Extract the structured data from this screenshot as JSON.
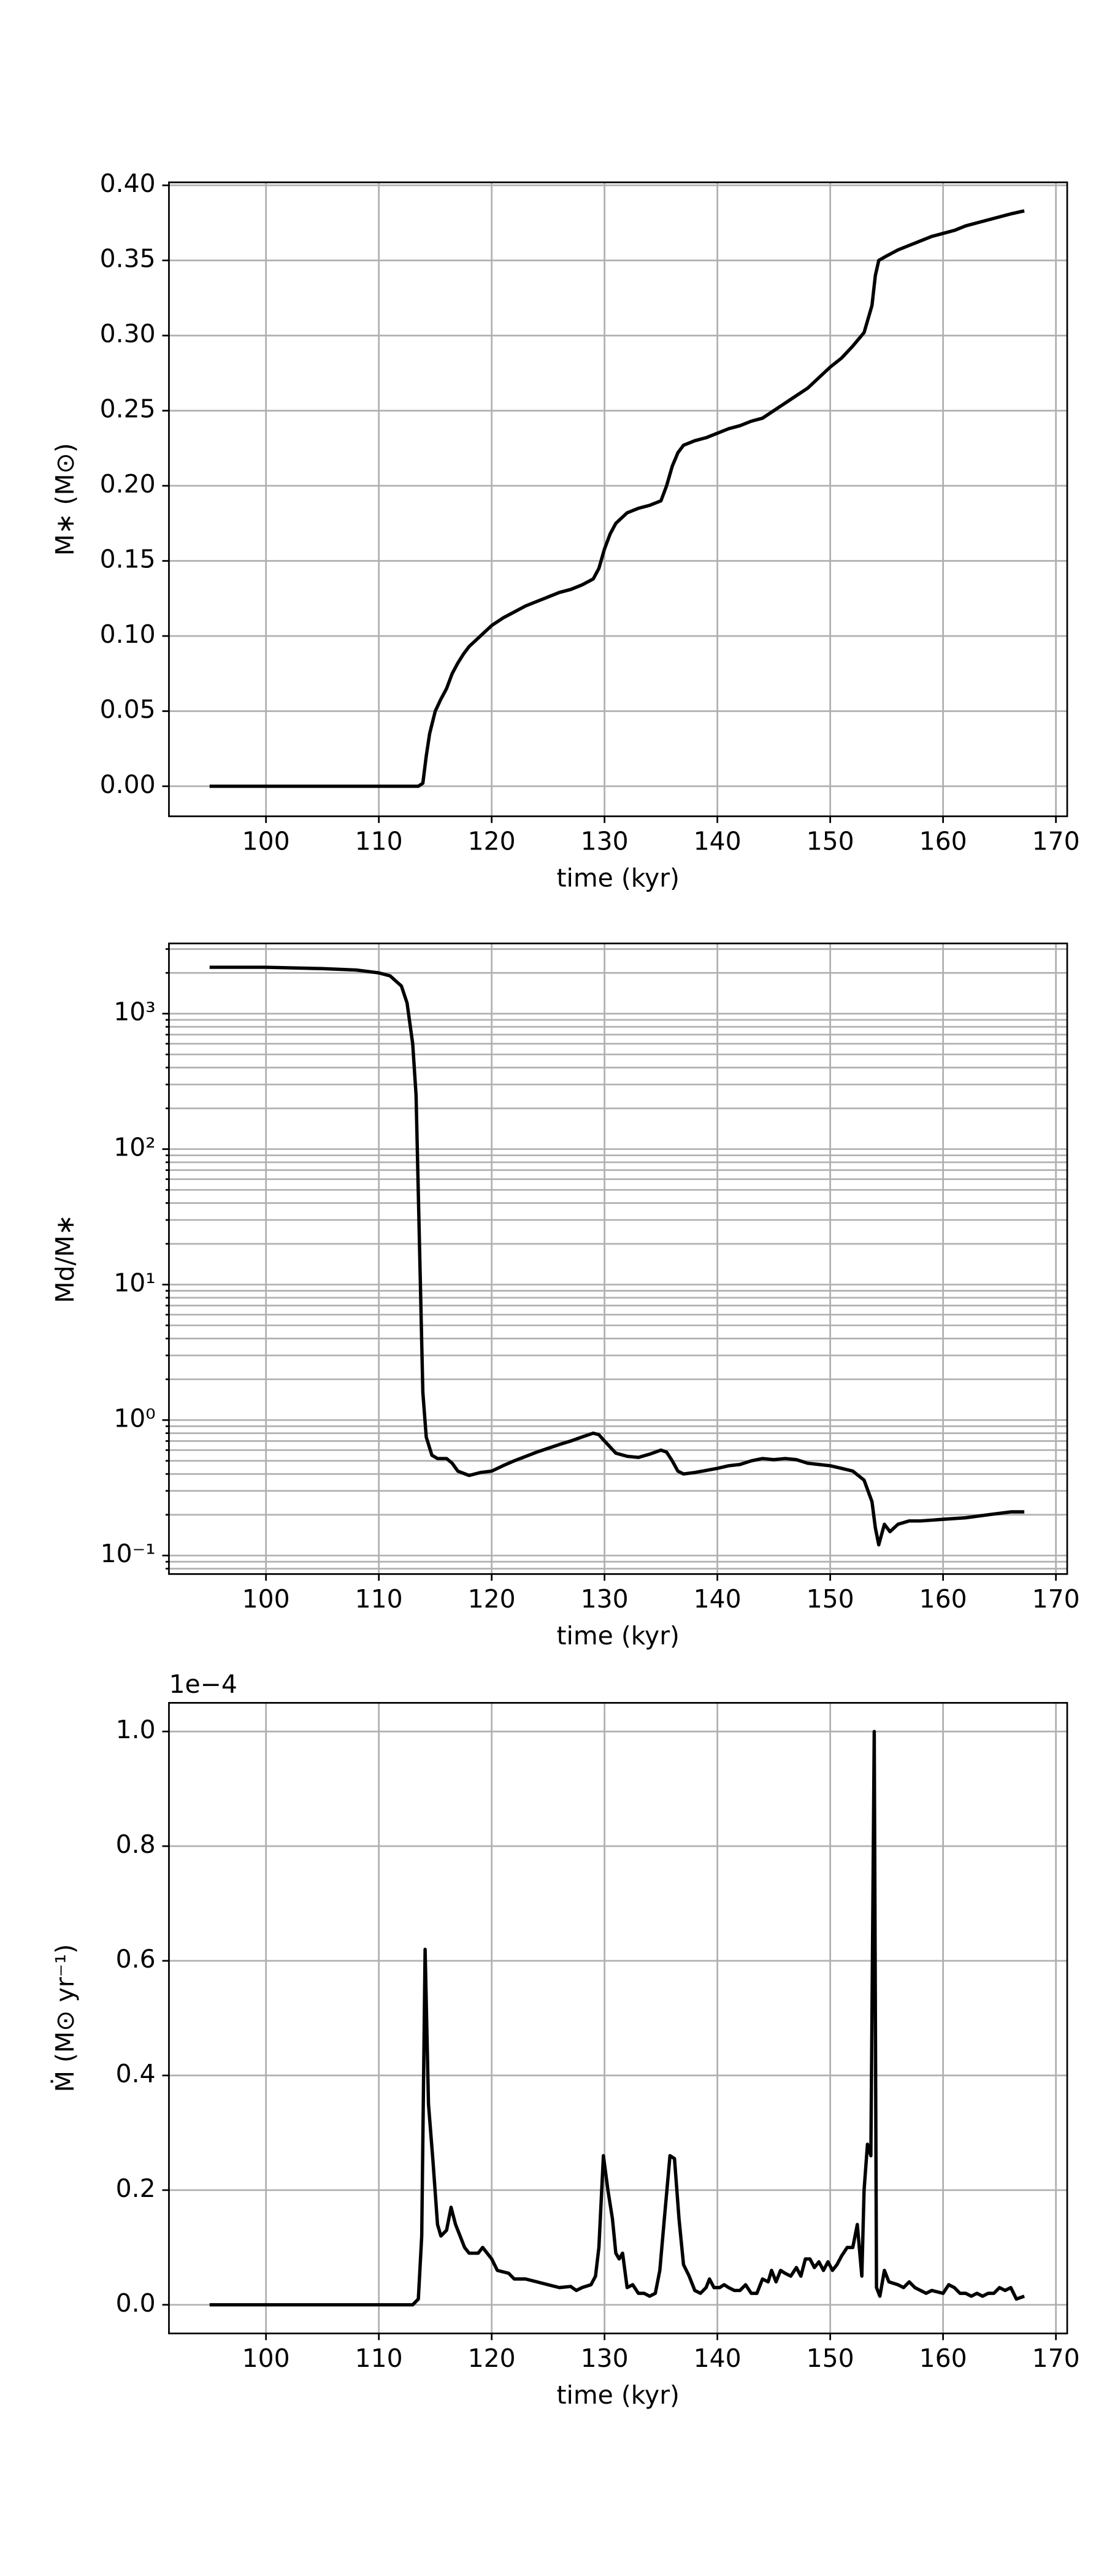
{
  "chart_data": [
    {
      "type": "line",
      "color": "#000000",
      "grid": true,
      "yscale": "linear",
      "xlabel": "time (kyr)",
      "ylabel": "M∗ (M⊙)",
      "xlim": [
        91.4,
        171.0
      ],
      "xticks": [
        100,
        110,
        120,
        130,
        140,
        150,
        160,
        170
      ],
      "ylim": [
        -0.02,
        0.402
      ],
      "yticks": [
        {
          "value": 0,
          "label": "0.00"
        },
        {
          "value": 0.05,
          "label": "0.05"
        },
        {
          "value": 0.1,
          "label": "0.10"
        },
        {
          "value": 0.15,
          "label": "0.15"
        },
        {
          "value": 0.2,
          "label": "0.20"
        },
        {
          "value": 0.25,
          "label": "0.25"
        },
        {
          "value": 0.3,
          "label": "0.30"
        },
        {
          "value": 0.35,
          "label": "0.35"
        },
        {
          "value": 0.4,
          "label": "0.40"
        }
      ],
      "x": [
        95,
        100,
        105,
        110,
        113.5,
        113.9,
        114.2,
        114.5,
        115,
        115.5,
        116,
        116.5,
        117,
        117.5,
        118,
        119,
        120,
        121,
        122,
        123,
        124,
        125,
        126,
        127,
        128,
        129,
        129.5,
        130,
        130.5,
        131,
        132,
        133,
        134,
        135,
        135.5,
        136,
        136.5,
        137,
        138,
        139,
        140,
        141,
        142,
        143,
        144,
        145,
        146,
        147,
        148,
        149,
        150,
        151,
        152,
        153,
        153.7,
        154,
        154.3,
        155,
        156,
        157,
        158,
        159,
        160,
        161,
        162,
        163,
        164,
        165,
        166,
        167.2
      ],
      "values": [
        0,
        0,
        0,
        0,
        0,
        0.002,
        0.02,
        0.035,
        0.05,
        0.058,
        0.065,
        0.075,
        0.082,
        0.088,
        0.093,
        0.1,
        0.107,
        0.112,
        0.116,
        0.12,
        0.123,
        0.126,
        0.129,
        0.131,
        0.134,
        0.138,
        0.145,
        0.158,
        0.168,
        0.175,
        0.182,
        0.185,
        0.187,
        0.19,
        0.2,
        0.213,
        0.222,
        0.227,
        0.23,
        0.232,
        0.235,
        0.238,
        0.24,
        0.243,
        0.245,
        0.25,
        0.255,
        0.26,
        0.265,
        0.272,
        0.279,
        0.285,
        0.293,
        0.302,
        0.32,
        0.34,
        0.35,
        0.353,
        0.357,
        0.36,
        0.363,
        0.366,
        0.368,
        0.37,
        0.373,
        0.375,
        0.377,
        0.379,
        0.381,
        0.383
      ]
    },
    {
      "type": "line",
      "color": "#000000",
      "grid": true,
      "yscale": "log",
      "xlabel": "time (kyr)",
      "ylabel": "Md/M∗",
      "xlim": [
        91.4,
        171.0
      ],
      "xticks": [
        100,
        110,
        120,
        130,
        140,
        150,
        160,
        170
      ],
      "ylim": [
        0.073,
        3300
      ],
      "yticks": [
        {
          "value": 0.1,
          "label": "10⁻¹"
        },
        {
          "value": 1,
          "label": "10⁰"
        },
        {
          "value": 10,
          "label": "10¹"
        },
        {
          "value": 100,
          "label": "10²"
        },
        {
          "value": 1000,
          "label": "10³"
        }
      ],
      "yminor_ticks": [
        0.08,
        0.09,
        0.2,
        0.3,
        0.4,
        0.5,
        0.6,
        0.7,
        0.8,
        0.9,
        2,
        3,
        4,
        5,
        6,
        7,
        8,
        9,
        20,
        30,
        40,
        50,
        60,
        70,
        80,
        90,
        200,
        300,
        400,
        500,
        600,
        700,
        800,
        900,
        2000,
        3000
      ],
      "x": [
        95,
        100,
        105,
        108,
        110,
        111,
        112,
        112.5,
        113,
        113.3,
        113.6,
        113.9,
        114.2,
        114.7,
        115.2,
        116,
        116.5,
        117,
        118,
        119,
        120,
        121,
        122,
        124,
        126,
        127,
        128,
        129,
        129.5,
        130,
        131,
        132,
        133,
        134,
        135,
        135.5,
        136,
        136.5,
        137,
        138,
        140,
        141,
        142,
        143,
        144,
        145,
        146,
        147,
        148,
        149,
        150,
        151,
        152,
        153,
        153.7,
        154,
        154.3,
        154.8,
        155.3,
        156,
        157,
        158,
        160,
        162,
        164,
        166,
        167.2
      ],
      "values": [
        2200,
        2200,
        2150,
        2100,
        2000,
        1900,
        1600,
        1200,
        600,
        250,
        20,
        1.6,
        0.75,
        0.55,
        0.52,
        0.52,
        0.48,
        0.42,
        0.39,
        0.41,
        0.42,
        0.46,
        0.5,
        0.58,
        0.66,
        0.7,
        0.75,
        0.8,
        0.78,
        0.7,
        0.57,
        0.54,
        0.53,
        0.56,
        0.6,
        0.58,
        0.5,
        0.42,
        0.4,
        0.41,
        0.44,
        0.46,
        0.47,
        0.5,
        0.52,
        0.51,
        0.52,
        0.51,
        0.48,
        0.47,
        0.46,
        0.44,
        0.42,
        0.36,
        0.25,
        0.16,
        0.12,
        0.17,
        0.15,
        0.17,
        0.18,
        0.18,
        0.185,
        0.19,
        0.2,
        0.21,
        0.21
      ]
    },
    {
      "type": "line",
      "color": "#000000",
      "grid": true,
      "yscale": "linear",
      "xlabel": "time (kyr)",
      "ylabel": "Ṁ (M⊙ yr⁻¹)",
      "offset_label": "1e−4",
      "xlim": [
        91.4,
        171.0
      ],
      "xticks": [
        100,
        110,
        120,
        130,
        140,
        150,
        160,
        170
      ],
      "ylim": [
        -0.05,
        1.05
      ],
      "yticks": [
        {
          "value": 0,
          "label": "0.0"
        },
        0.2,
        0.4,
        0.6,
        0.8,
        {
          "value": 1,
          "label": "1.0"
        }
      ],
      "x": [
        95,
        113,
        113.5,
        113.8,
        114.1,
        114.4,
        114.8,
        115.2,
        115.5,
        116,
        116.4,
        116.8,
        117.2,
        117.6,
        118,
        118.8,
        119.2,
        120,
        120.5,
        121.5,
        122,
        123,
        124,
        125,
        126,
        127,
        127.5,
        128,
        128.8,
        129.2,
        129.5,
        129.9,
        130.3,
        130.7,
        131,
        131.3,
        131.6,
        132,
        132.5,
        133,
        133.5,
        134,
        134.5,
        134.9,
        135.3,
        135.8,
        136.2,
        136.6,
        137,
        137.5,
        138,
        138.5,
        139,
        139.3,
        139.7,
        140.2,
        140.6,
        141,
        141.5,
        142,
        142.5,
        143,
        143.5,
        144,
        144.5,
        144.8,
        145.2,
        145.6,
        146,
        146.5,
        147,
        147.4,
        147.8,
        148.2,
        148.6,
        149,
        149.4,
        149.8,
        150.2,
        150.6,
        151,
        151.5,
        152,
        152.4,
        152.8,
        153,
        153.3,
        153.6,
        153.9,
        154.1,
        154.4,
        154.8,
        155.2,
        156,
        156.5,
        157,
        157.5,
        158,
        158.5,
        159,
        160,
        160.5,
        161,
        161.5,
        162,
        162.5,
        163,
        163.5,
        164,
        164.5,
        165,
        165.5,
        166,
        166.5,
        167.2
      ],
      "values": [
        0,
        0,
        0.01,
        0.12,
        0.62,
        0.35,
        0.25,
        0.14,
        0.12,
        0.13,
        0.17,
        0.14,
        0.12,
        0.1,
        0.09,
        0.09,
        0.1,
        0.08,
        0.06,
        0.055,
        0.045,
        0.045,
        0.04,
        0.035,
        0.03,
        0.032,
        0.025,
        0.03,
        0.035,
        0.05,
        0.1,
        0.26,
        0.2,
        0.15,
        0.09,
        0.08,
        0.09,
        0.03,
        0.035,
        0.02,
        0.02,
        0.015,
        0.02,
        0.06,
        0.15,
        0.26,
        0.255,
        0.15,
        0.07,
        0.05,
        0.025,
        0.02,
        0.03,
        0.045,
        0.03,
        0.03,
        0.035,
        0.03,
        0.025,
        0.025,
        0.035,
        0.02,
        0.02,
        0.045,
        0.04,
        0.06,
        0.04,
        0.06,
        0.055,
        0.05,
        0.065,
        0.05,
        0.08,
        0.08,
        0.065,
        0.075,
        0.06,
        0.075,
        0.06,
        0.07,
        0.085,
        0.1,
        0.1,
        0.14,
        0.05,
        0.2,
        0.28,
        0.26,
        1.0,
        0.03,
        0.015,
        0.06,
        0.04,
        0.035,
        0.03,
        0.04,
        0.03,
        0.025,
        0.02,
        0.025,
        0.02,
        0.035,
        0.03,
        0.02,
        0.02,
        0.015,
        0.02,
        0.015,
        0.02,
        0.02,
        0.03,
        0.025,
        0.03,
        0.01,
        0.015
      ]
    }
  ]
}
